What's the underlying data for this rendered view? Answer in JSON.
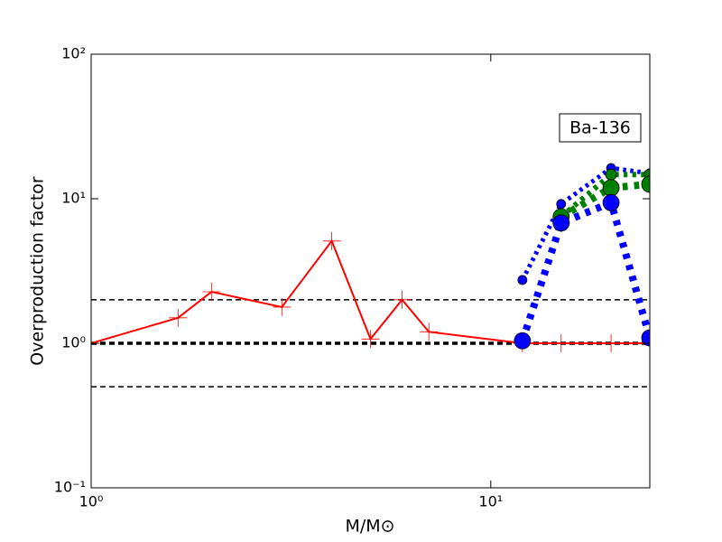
{
  "chart_data": {
    "type": "line",
    "xlabel": "M/M⊙",
    "ylabel": "Overproduction factor",
    "annotation": "Ba-136",
    "xscale": "log",
    "yscale": "log",
    "xlim": [
      1,
      25
    ],
    "ylim": [
      0.1,
      100
    ],
    "xticks": [
      {
        "value": 1,
        "label": "10⁰"
      },
      {
        "value": 10,
        "label": "10¹"
      }
    ],
    "yticks": [
      {
        "value": 0.1,
        "label": "10⁻¹"
      },
      {
        "value": 1,
        "label": "10⁰"
      },
      {
        "value": 10,
        "label": "10¹"
      },
      {
        "value": 100,
        "label": "10²"
      }
    ],
    "hlines": [
      {
        "value": 2,
        "width": 1.5
      },
      {
        "value": 1,
        "width": 3.5
      },
      {
        "value": 0.5,
        "width": 1.5
      }
    ],
    "series": [
      {
        "color": "#ff0000",
        "linestyle": "solid",
        "linewidth": 2,
        "marker": "plus",
        "markersize": 10,
        "x": [
          1,
          1.65,
          2,
          3,
          4,
          5,
          6,
          7,
          12,
          15,
          20,
          25
        ],
        "values": [
          1.0,
          1.5,
          2.27,
          1.78,
          5.1,
          1.07,
          2.0,
          1.2,
          1.0,
          1.0,
          1.0,
          1.0
        ]
      },
      {
        "color": "#0000ff",
        "linestyle": "dotted",
        "linewidth": 5,
        "marker": "circle",
        "markersize": 5,
        "x": [
          12,
          15,
          20,
          25
        ],
        "values": [
          2.74,
          9.2,
          16.3,
          15
        ]
      },
      {
        "color": "#008000",
        "linestyle": "dotted",
        "linewidth": 6,
        "marker": "circle",
        "markersize": 6,
        "x": [
          15,
          20,
          25
        ],
        "values": [
          7.5,
          14.7,
          14.7
        ]
      },
      {
        "color": "#008000",
        "linestyle": "dotted",
        "linewidth": 8,
        "marker": "circle",
        "markersize": 9,
        "x": [
          15,
          20,
          25
        ],
        "values": [
          7.5,
          11.9,
          12.6
        ]
      },
      {
        "color": "#0000ff",
        "linestyle": "dotted",
        "linewidth": 8,
        "marker": "circle",
        "markersize": 9,
        "x": [
          12,
          15,
          20,
          25
        ],
        "values": [
          1.04,
          6.8,
          9.4,
          1.09
        ]
      }
    ]
  }
}
